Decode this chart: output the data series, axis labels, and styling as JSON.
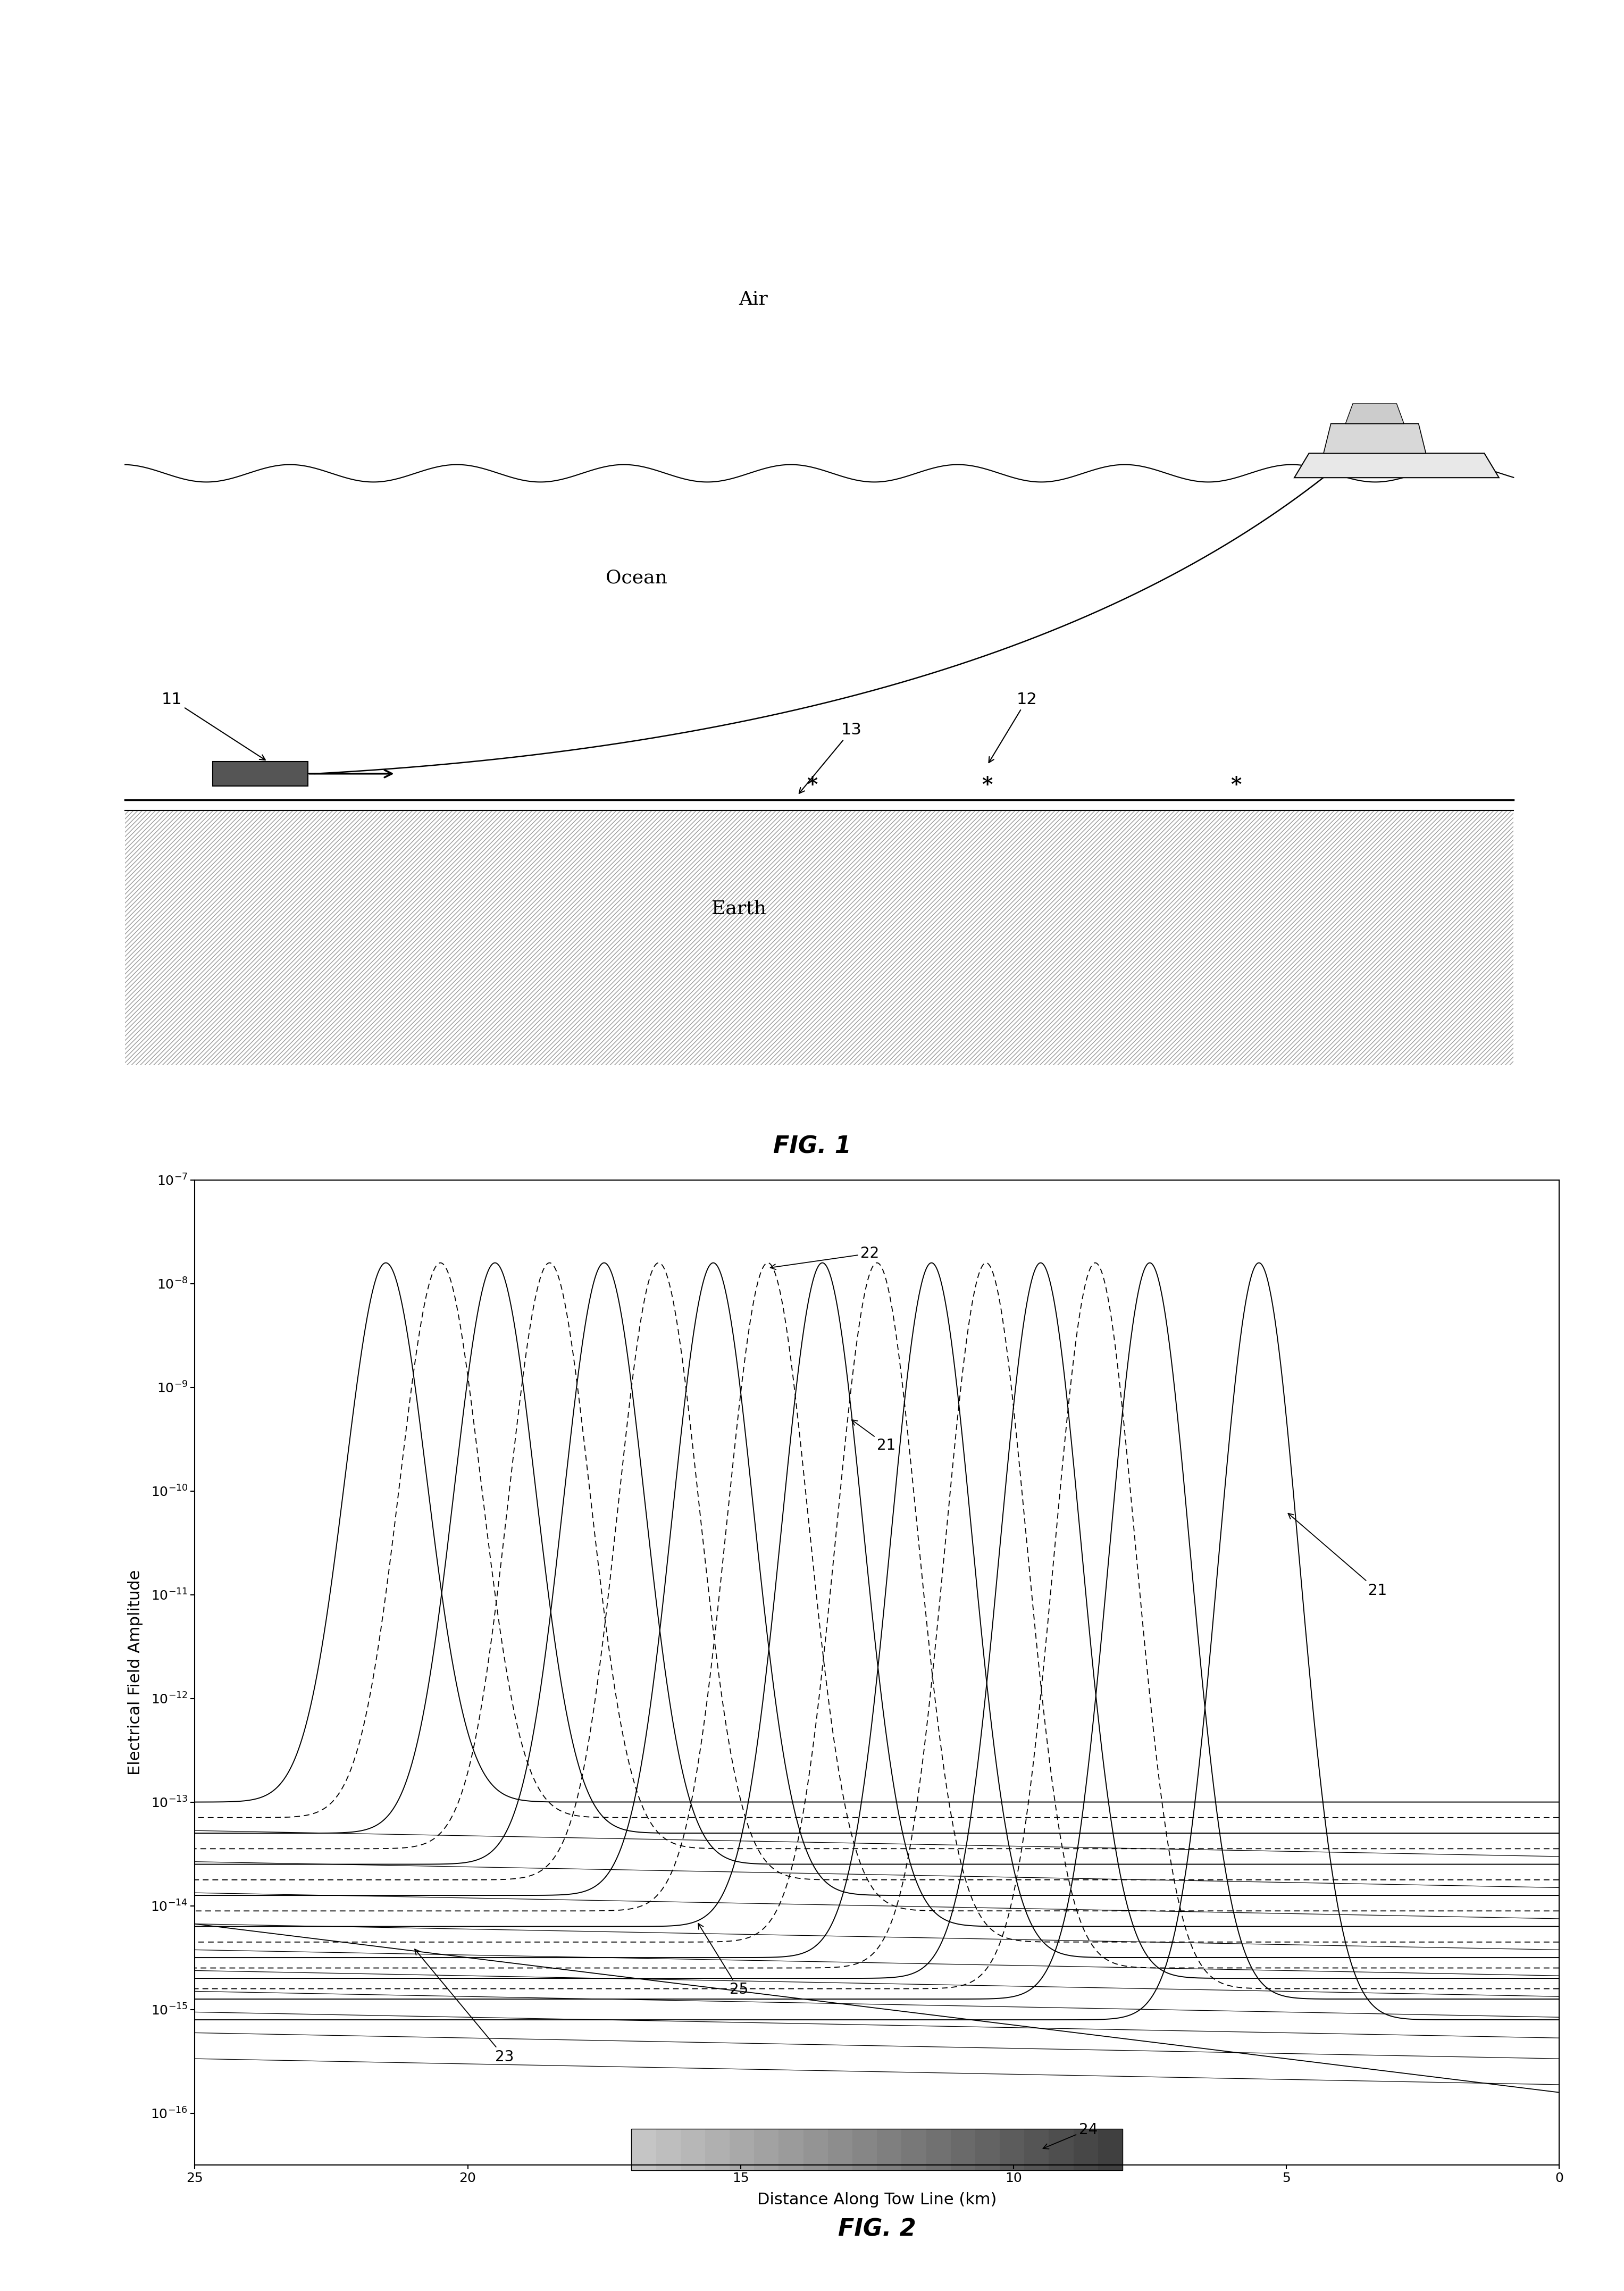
{
  "fig_width": 30.54,
  "fig_height": 43.08,
  "background_color": "#ffffff",
  "fig1": {
    "air_label": "Air",
    "ocean_label": "Ocean",
    "earth_label": "Earth",
    "label_11": "11",
    "label_12": "12",
    "label_13": "13"
  },
  "fig2": {
    "xlabel": "Distance Along Tow Line (km)",
    "ylabel": "Electrical Field Amplitude",
    "ytick_labels": [
      "10$^{-16}$",
      "10$^{-15}$",
      "10$^{-14}$",
      "10$^{-13}$",
      "10$^{-12}$",
      "10$^{-11}$",
      "10$^{-10}$",
      "10$^{-9}$",
      "10$^{-8}$",
      "10$^{-7}$"
    ],
    "xtick_vals": [
      25,
      20,
      15,
      10,
      5,
      0
    ]
  }
}
